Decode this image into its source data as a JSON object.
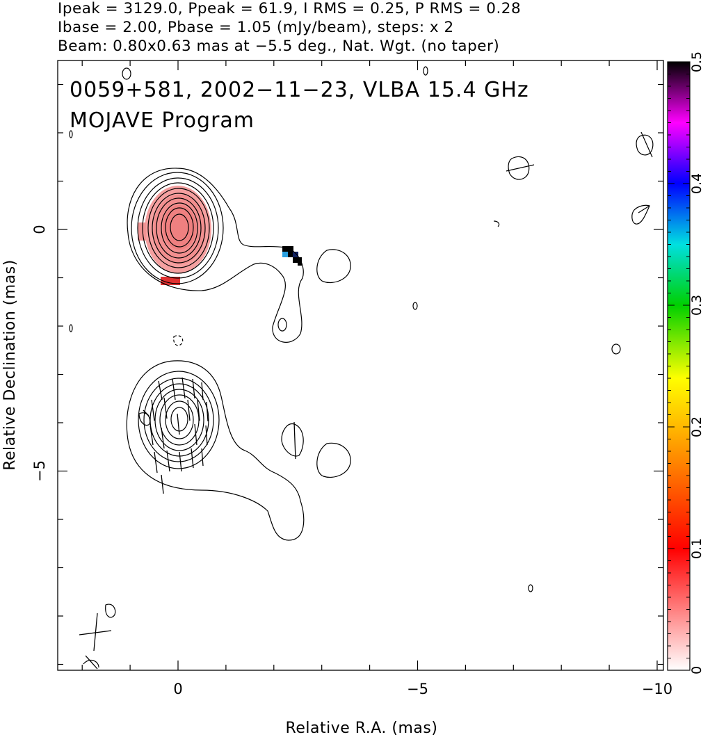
{
  "header": {
    "line1": "Ipeak = 3129.0, Ppeak = 61.9, I RMS = 0.25, P RMS = 0.28",
    "line2": "Ibase = 2.00, Pbase = 1.05 (mJy/beam), steps: x 2",
    "line3": "Beam: 0.80x0.63 mas at −5.5 deg., Nat. Wgt. (no taper)"
  },
  "chart_data": {
    "type": "contour",
    "title": "0059+581, 2002−11−23, VLBA 15.4 GHz",
    "subtitle": "MOJAVE Program",
    "xlabel": "Relative R.A. (mas)",
    "ylabel": "Relative Declination (mas)",
    "xlim": [
      2.5,
      -10.2
    ],
    "ylim": [
      -9.0,
      3.5
    ],
    "x_ticks": [
      {
        "value": 0,
        "label": "0"
      },
      {
        "value": -5,
        "label": "−5"
      },
      {
        "value": -10,
        "label": "−10"
      }
    ],
    "y_ticks": [
      {
        "value": 0,
        "label": "0"
      },
      {
        "value": -5,
        "label": "−5"
      }
    ],
    "grid": false,
    "panels": [
      {
        "name": "total intensity + fractional polarization",
        "center": [
          0,
          0
        ],
        "contour_levels_mjy": [
          2,
          4,
          8,
          16,
          32,
          64,
          128,
          256,
          512,
          1024,
          2048
        ],
        "color_fill": "fractional polarization"
      },
      {
        "name": "total intensity + EVPA ticks",
        "center": [
          0,
          -4
        ],
        "contour_levels_mjy": [
          2,
          4,
          8,
          16,
          32,
          64,
          128,
          256,
          512,
          1024,
          2048
        ],
        "evpa_ticks": true
      }
    ],
    "colorbar": {
      "min": 0,
      "max": 0.5,
      "ticks": [
        {
          "value": 0,
          "label": "0"
        },
        {
          "value": 0.1,
          "label": "0.1"
        },
        {
          "value": 0.2,
          "label": "0.2"
        },
        {
          "value": 0.3,
          "label": "0.3"
        },
        {
          "value": 0.4,
          "label": "0.4"
        },
        {
          "value": 0.5,
          "label": "0.5"
        }
      ],
      "colors": [
        "#ffffff",
        "#ff0000",
        "#ff8c00",
        "#ffff00",
        "#00e000",
        "#00e0e0",
        "#0000ff",
        "#ff00ff",
        "#000000"
      ]
    },
    "beam": {
      "major_mas": 0.8,
      "minor_mas": 0.63,
      "pa_deg": -5.5
    }
  }
}
